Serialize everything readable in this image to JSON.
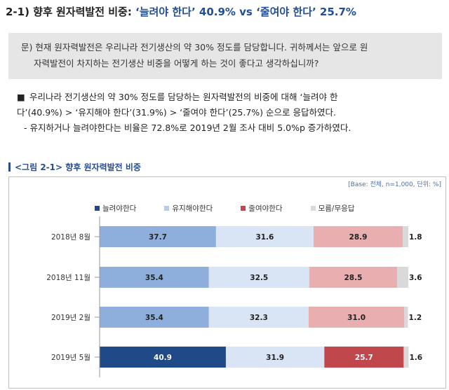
{
  "header": {
    "title_prefix": "2-1) 향후 원자력발전 비중: ",
    "title_highlight": "‘늘려야 한다’ 40.9% vs ‘줄여야 한다’ 25.7%"
  },
  "question": {
    "line1": "문) 현재 원자력발전은 우리나라 전기생산의 약 30% 정도를 담당합니다. 귀하께서는 앞으로 원",
    "line2": "자력발전이 차지하는 전기생산 비중을 어떻게 하는 것이 좋다고 생각하십니까?"
  },
  "summary": {
    "bullet": "■",
    "line1": "우리나라 전기생산의 약 30% 정도를 담당하는 원자력발전의 비중에 대해 ‘늘려야 한",
    "line2": "다’(40.9%) > ‘유지해야 한다’(31.9%) > ‘줄여야 한다’(25.7%) 순으로 응답하였다.",
    "line3": "- 유지하거나 늘려야한다는 비율은 72.8%로 2019년 2월 조사 대비 5.0%p 증가하였다."
  },
  "figure": {
    "title": "<그림 2-1> 향후 원자력발전 비중",
    "base_note": "[Base: 전체, n=1,000, 단위: %]"
  },
  "chart_data": {
    "type": "bar",
    "orientation": "horizontal-stacked-100",
    "categories": [
      "2018년 8월",
      "2018년 11월",
      "2019년 2월",
      "2019년 5월"
    ],
    "series": [
      {
        "name": "늘려야한다",
        "values": [
          37.7,
          35.4,
          35.4,
          40.9
        ]
      },
      {
        "name": "유지해야한다",
        "values": [
          31.6,
          32.5,
          32.3,
          31.9
        ]
      },
      {
        "name": "줄여야한다",
        "values": [
          28.9,
          28.5,
          31.0,
          25.7
        ]
      },
      {
        "name": "모름/무응답",
        "values": [
          1.8,
          3.6,
          1.2,
          1.6
        ]
      }
    ],
    "legend_position": "top",
    "colors_past": [
      "#8eaedb",
      "#d9e5f4",
      "#e8aeb0",
      "#d9d9d9"
    ],
    "colors_latest": [
      "#1f4a87",
      "#d9e5f4",
      "#c0484d",
      "#d9d9d9"
    ],
    "legend_colors": [
      "#1f4a87",
      "#b8cce8",
      "#c0484d",
      "#d9d9d9"
    ]
  }
}
